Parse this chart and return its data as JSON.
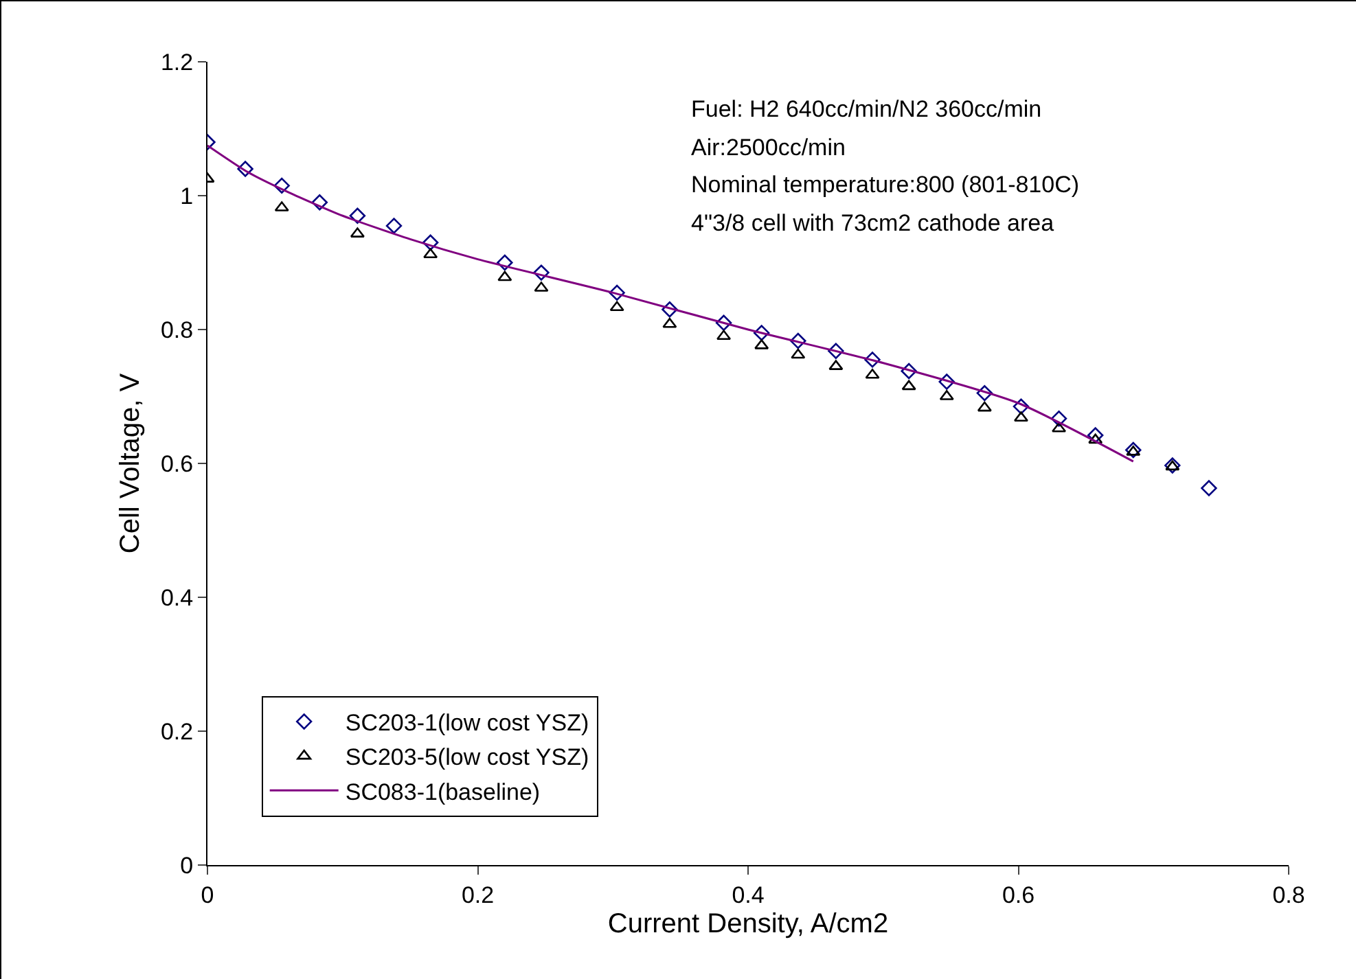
{
  "chart_data": {
    "type": "scatter",
    "xlabel": "Current Density, A/cm2",
    "ylabel": "Cell Voltage, V",
    "xlim": [
      0,
      0.8
    ],
    "xticks": [
      0,
      0.2,
      0.4,
      0.6,
      0.8
    ],
    "ylim": [
      0,
      1.2
    ],
    "yticks": [
      0,
      0.2,
      0.4,
      0.6,
      0.8,
      1,
      1.2
    ],
    "grid": false,
    "legend": "bottom left",
    "annotations": [
      "Fuel: H2 640cc/min/N2 360cc/min",
      "Air:2500cc/min",
      "Nominal temperature:800 (801-810C)",
      "4\"3/8 cell with 73cm2 cathode area"
    ],
    "series": [
      {
        "name": "SC203-1(low cost YSZ)",
        "type": "scatter",
        "marker": "diamond",
        "color": "#000080",
        "x": [
          0,
          0.028,
          0.055,
          0.083,
          0.111,
          0.138,
          0.165,
          0.22,
          0.247,
          0.303,
          0.342,
          0.382,
          0.41,
          0.437,
          0.465,
          0.492,
          0.519,
          0.547,
          0.575,
          0.602,
          0.63,
          0.657,
          0.685,
          0.714,
          0.741
        ],
        "values": [
          1.08,
          1.04,
          1.015,
          0.99,
          0.97,
          0.955,
          0.93,
          0.9,
          0.885,
          0.855,
          0.83,
          0.81,
          0.795,
          0.783,
          0.768,
          0.755,
          0.738,
          0.722,
          0.705,
          0.685,
          0.667,
          0.642,
          0.62,
          0.597,
          0.563
        ]
      },
      {
        "name": "SC203-5(low cost YSZ)",
        "type": "scatter",
        "marker": "triangle",
        "color": "#000000",
        "x": [
          0,
          0.055,
          0.111,
          0.165,
          0.22,
          0.247,
          0.303,
          0.342,
          0.382,
          0.41,
          0.437,
          0.465,
          0.492,
          0.519,
          0.547,
          0.575,
          0.602,
          0.63,
          0.657,
          0.685,
          0.714
        ],
        "values": [
          1.025,
          0.982,
          0.943,
          0.912,
          0.878,
          0.862,
          0.833,
          0.808,
          0.79,
          0.776,
          0.762,
          0.745,
          0.732,
          0.715,
          0.7,
          0.683,
          0.668,
          0.652,
          0.635,
          0.617,
          0.595
        ]
      },
      {
        "name": "SC083-1(baseline)",
        "type": "line",
        "marker": "none",
        "line_style": "solid",
        "color": "#800080",
        "x": [
          0,
          0.03,
          0.06,
          0.1,
          0.15,
          0.2,
          0.3,
          0.4,
          0.5,
          0.6,
          0.685
        ],
        "values": [
          1.075,
          1.035,
          1.005,
          0.97,
          0.935,
          0.905,
          0.855,
          0.8,
          0.75,
          0.69,
          0.603
        ]
      }
    ]
  }
}
